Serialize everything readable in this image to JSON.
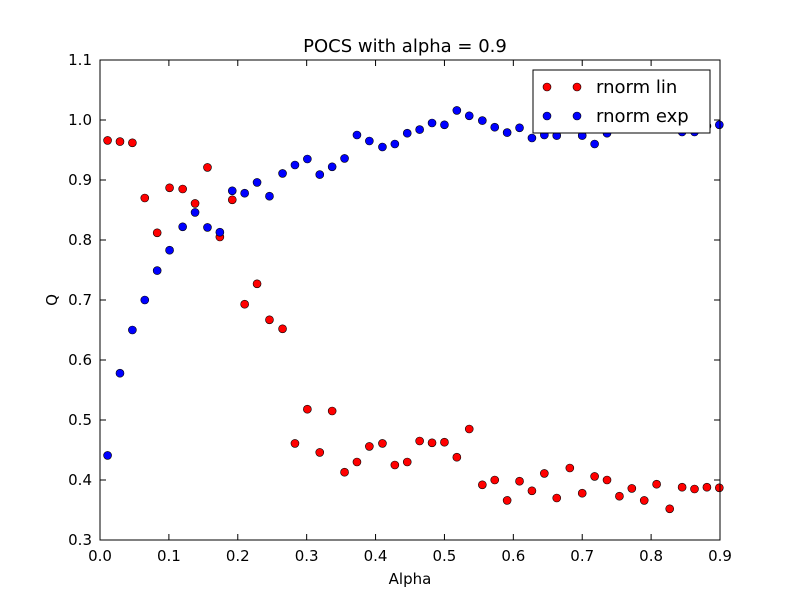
{
  "chart_data": {
    "type": "scatter",
    "title": "POCS with alpha = 0.9",
    "xlabel": "Alpha",
    "ylabel": "Q",
    "xlim": [
      0.0,
      0.9
    ],
    "ylim": [
      0.3,
      1.1
    ],
    "xticks": [
      "0.0",
      "0.1",
      "0.2",
      "0.3",
      "0.4",
      "0.5",
      "0.6",
      "0.7",
      "0.8",
      "0.9"
    ],
    "yticks": [
      "0.3",
      "0.4",
      "0.5",
      "0.6",
      "0.7",
      "0.8",
      "0.9",
      "1.0",
      "1.1"
    ],
    "grid": false,
    "legend": "top-right",
    "series": [
      {
        "name": "rnorm lin",
        "color": "#ff0000",
        "x": [
          0.011,
          0.029,
          0.047,
          0.065,
          0.083,
          0.101,
          0.12,
          0.138,
          0.156,
          0.174,
          0.192,
          0.21,
          0.228,
          0.246,
          0.265,
          0.283,
          0.301,
          0.319,
          0.337,
          0.355,
          0.373,
          0.391,
          0.41,
          0.428,
          0.446,
          0.464,
          0.482,
          0.5,
          0.518,
          0.536,
          0.555,
          0.573,
          0.591,
          0.609,
          0.627,
          0.645,
          0.663,
          0.682,
          0.7,
          0.718,
          0.736,
          0.754,
          0.772,
          0.79,
          0.808,
          0.827,
          0.845,
          0.863,
          0.881,
          0.899
        ],
        "y": [
          0.966,
          0.964,
          0.962,
          0.87,
          0.812,
          0.887,
          0.885,
          0.861,
          0.921,
          0.805,
          0.867,
          0.693,
          0.727,
          0.667,
          0.652,
          0.461,
          0.518,
          0.446,
          0.515,
          0.413,
          0.43,
          0.456,
          0.461,
          0.425,
          0.43,
          0.465,
          0.462,
          0.463,
          0.438,
          0.485,
          0.392,
          0.4,
          0.366,
          0.398,
          0.382,
          0.411,
          0.37,
          0.42,
          0.378,
          0.406,
          0.4,
          0.373,
          0.386,
          0.366,
          0.393,
          0.352,
          0.388,
          0.385,
          0.388,
          0.387
        ]
      },
      {
        "name": "rnorm exp",
        "color": "#0000ff",
        "x": [
          0.011,
          0.029,
          0.047,
          0.065,
          0.083,
          0.101,
          0.12,
          0.138,
          0.156,
          0.174,
          0.192,
          0.21,
          0.228,
          0.246,
          0.265,
          0.283,
          0.301,
          0.319,
          0.337,
          0.355,
          0.373,
          0.391,
          0.41,
          0.428,
          0.446,
          0.464,
          0.482,
          0.5,
          0.518,
          0.536,
          0.555,
          0.573,
          0.591,
          0.609,
          0.627,
          0.645,
          0.663,
          0.682,
          0.7,
          0.718,
          0.736,
          0.754,
          0.772,
          0.79,
          0.808,
          0.827,
          0.845,
          0.863,
          0.881,
          0.899
        ],
        "y": [
          0.441,
          0.578,
          0.65,
          0.7,
          0.749,
          0.783,
          0.822,
          0.846,
          0.821,
          0.813,
          0.882,
          0.878,
          0.896,
          0.873,
          0.911,
          0.925,
          0.935,
          0.909,
          0.922,
          0.936,
          0.975,
          0.965,
          0.955,
          0.96,
          0.978,
          0.984,
          0.995,
          0.992,
          1.016,
          1.007,
          0.999,
          0.988,
          0.979,
          0.987,
          0.97,
          0.975,
          0.974,
          0.99,
          0.974,
          0.96,
          0.978,
          0.99,
          0.988,
          0.992,
          0.995,
          0.99,
          0.98,
          0.98,
          0.99,
          0.992
        ]
      }
    ]
  }
}
